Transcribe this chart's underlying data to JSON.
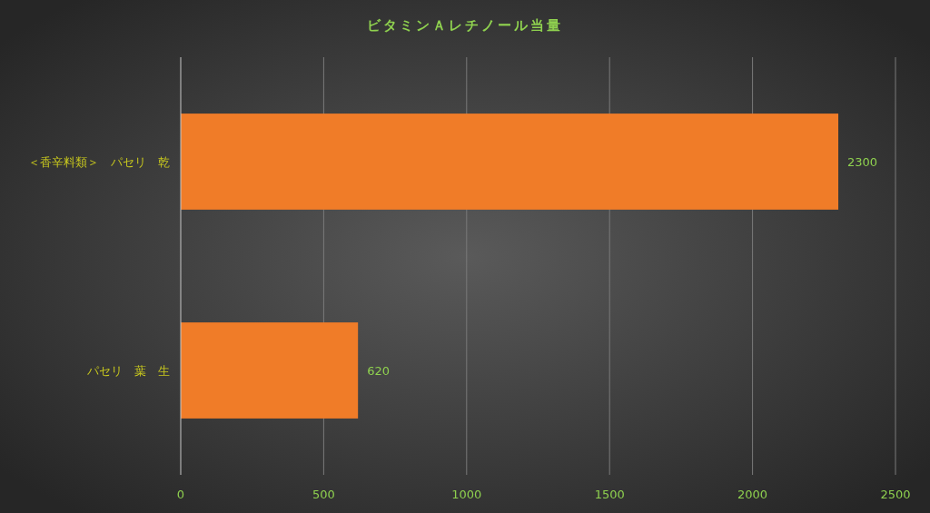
{
  "chart_data": {
    "type": "bar",
    "orientation": "horizontal",
    "title": "ビタミンＡレチノール当量",
    "categories": [
      "＜香辛料類＞　パセリ　乾",
      "パセリ　葉　生"
    ],
    "values": [
      2300,
      620
    ],
    "color": "#f07c28",
    "xlim": [
      0,
      2500
    ],
    "xticks": [
      0,
      500,
      1000,
      1500,
      2000,
      2500
    ],
    "grid": "x",
    "data_labels": true
  }
}
